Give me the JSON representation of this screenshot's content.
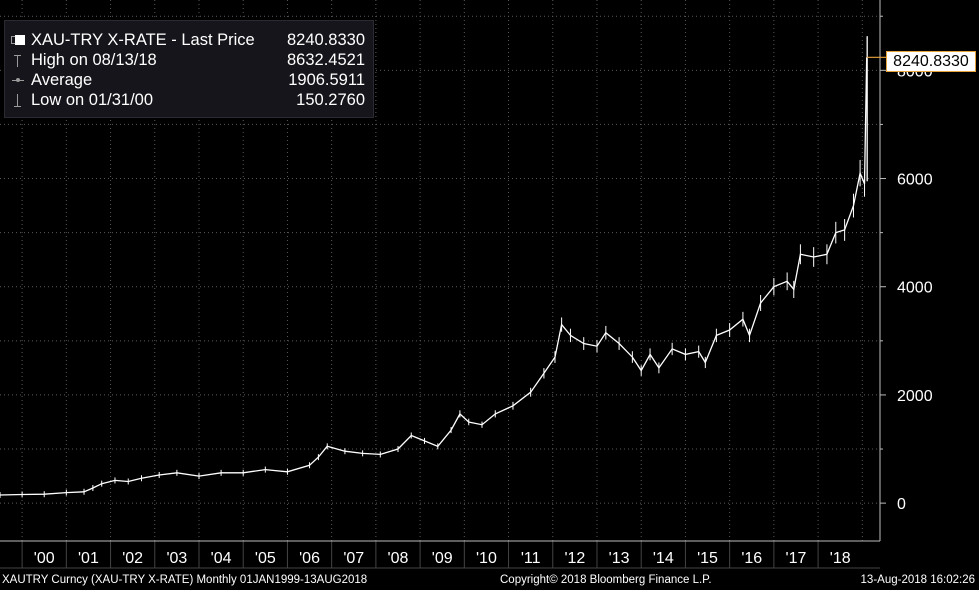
{
  "colors": {
    "background": "#000000",
    "grid": "#5a5a5a",
    "line": "#ffffff",
    "legend_bg": "#15151b",
    "price_marker": "#e8a33c"
  },
  "legend": {
    "rows": [
      {
        "label": "XAU-TRY X-RATE - Last Price",
        "value": "8240.8330",
        "symbol": "white-square-icon"
      },
      {
        "label": "High on 08/13/18",
        "value": "8632.4521",
        "symbol": "high-marker-icon"
      },
      {
        "label": "Average",
        "value": "1906.5911",
        "symbol": "average-marker-icon"
      },
      {
        "label": "Low on 01/31/00",
        "value": "150.2760",
        "symbol": "low-marker-icon"
      }
    ]
  },
  "last_price_tag": "8240.8330",
  "footer": {
    "left": "XAUTRY Curncy (XAU-TRY X-RATE)  Monthly 01JAN1999-13AUG2018",
    "center": "Copyright© 2018 Bloomberg Finance L.P.",
    "right": "13-Aug-2018 16:02:26"
  },
  "chart_data": {
    "type": "line",
    "series": [
      {
        "name": "XAU-TRY X-RATE - Last Price",
        "points": [
          [
            1999.0,
            150
          ],
          [
            1999.5,
            160
          ],
          [
            2000.0,
            165
          ],
          [
            2000.5,
            195
          ],
          [
            2000.9,
            210
          ],
          [
            2001.1,
            280
          ],
          [
            2001.3,
            360
          ],
          [
            2001.6,
            420
          ],
          [
            2001.9,
            400
          ],
          [
            2002.2,
            460
          ],
          [
            2002.6,
            520
          ],
          [
            2003.0,
            560
          ],
          [
            2003.5,
            500
          ],
          [
            2004.0,
            560
          ],
          [
            2004.5,
            560
          ],
          [
            2005.0,
            620
          ],
          [
            2005.5,
            580
          ],
          [
            2006.0,
            700
          ],
          [
            2006.2,
            850
          ],
          [
            2006.4,
            1050
          ],
          [
            2006.8,
            960
          ],
          [
            2007.2,
            920
          ],
          [
            2007.6,
            900
          ],
          [
            2008.0,
            1000
          ],
          [
            2008.3,
            1250
          ],
          [
            2008.6,
            1150
          ],
          [
            2008.9,
            1050
          ],
          [
            2009.2,
            1350
          ],
          [
            2009.4,
            1650
          ],
          [
            2009.6,
            1500
          ],
          [
            2009.9,
            1450
          ],
          [
            2010.2,
            1650
          ],
          [
            2010.6,
            1800
          ],
          [
            2011.0,
            2050
          ],
          [
            2011.3,
            2400
          ],
          [
            2011.55,
            2700
          ],
          [
            2011.7,
            3300
          ],
          [
            2011.9,
            3100
          ],
          [
            2012.2,
            2950
          ],
          [
            2012.5,
            2900
          ],
          [
            2012.7,
            3150
          ],
          [
            2013.0,
            2950
          ],
          [
            2013.3,
            2700
          ],
          [
            2013.5,
            2450
          ],
          [
            2013.7,
            2750
          ],
          [
            2013.9,
            2500
          ],
          [
            2014.2,
            2850
          ],
          [
            2014.5,
            2750
          ],
          [
            2014.8,
            2800
          ],
          [
            2014.95,
            2600
          ],
          [
            2015.2,
            3100
          ],
          [
            2015.5,
            3200
          ],
          [
            2015.8,
            3400
          ],
          [
            2015.95,
            3100
          ],
          [
            2016.2,
            3700
          ],
          [
            2016.5,
            4000
          ],
          [
            2016.8,
            4100
          ],
          [
            2016.95,
            3950
          ],
          [
            2017.1,
            4600
          ],
          [
            2017.4,
            4550
          ],
          [
            2017.7,
            4600
          ],
          [
            2017.9,
            5000
          ],
          [
            2018.1,
            5050
          ],
          [
            2018.3,
            5500
          ],
          [
            2018.45,
            6100
          ],
          [
            2018.55,
            5900
          ],
          [
            2018.6,
            8240.833
          ]
        ]
      }
    ],
    "high_point": [
      2018.61,
      8632.4521
    ],
    "xlim": [
      1999.0,
      2018.9
    ],
    "ylim": [
      -700,
      9300
    ],
    "x_ticks": [
      {
        "label": "'00",
        "x": 2000.0
      },
      {
        "label": "'01",
        "x": 2001.0
      },
      {
        "label": "'02",
        "x": 2002.0
      },
      {
        "label": "'03",
        "x": 2003.0
      },
      {
        "label": "'04",
        "x": 2004.0
      },
      {
        "label": "'05",
        "x": 2005.0
      },
      {
        "label": "'06",
        "x": 2006.0
      },
      {
        "label": "'07",
        "x": 2007.0
      },
      {
        "label": "'08",
        "x": 2008.0
      },
      {
        "label": "'09",
        "x": 2009.0
      },
      {
        "label": "'10",
        "x": 2010.0
      },
      {
        "label": "'11",
        "x": 2011.0
      },
      {
        "label": "'12",
        "x": 2012.0
      },
      {
        "label": "'13",
        "x": 2013.0
      },
      {
        "label": "'14",
        "x": 2014.0
      },
      {
        "label": "'15",
        "x": 2015.0
      },
      {
        "label": "'16",
        "x": 2016.0
      },
      {
        "label": "'17",
        "x": 2017.0
      },
      {
        "label": "'18",
        "x": 2018.0
      }
    ],
    "y_ticks": [
      {
        "label": "0",
        "value": 0
      },
      {
        "label": "2000",
        "value": 2000
      },
      {
        "label": "4000",
        "value": 4000
      },
      {
        "label": "6000",
        "value": 6000
      },
      {
        "label": "8000",
        "value": 8000
      }
    ],
    "grid": true,
    "axis_position": "right"
  }
}
